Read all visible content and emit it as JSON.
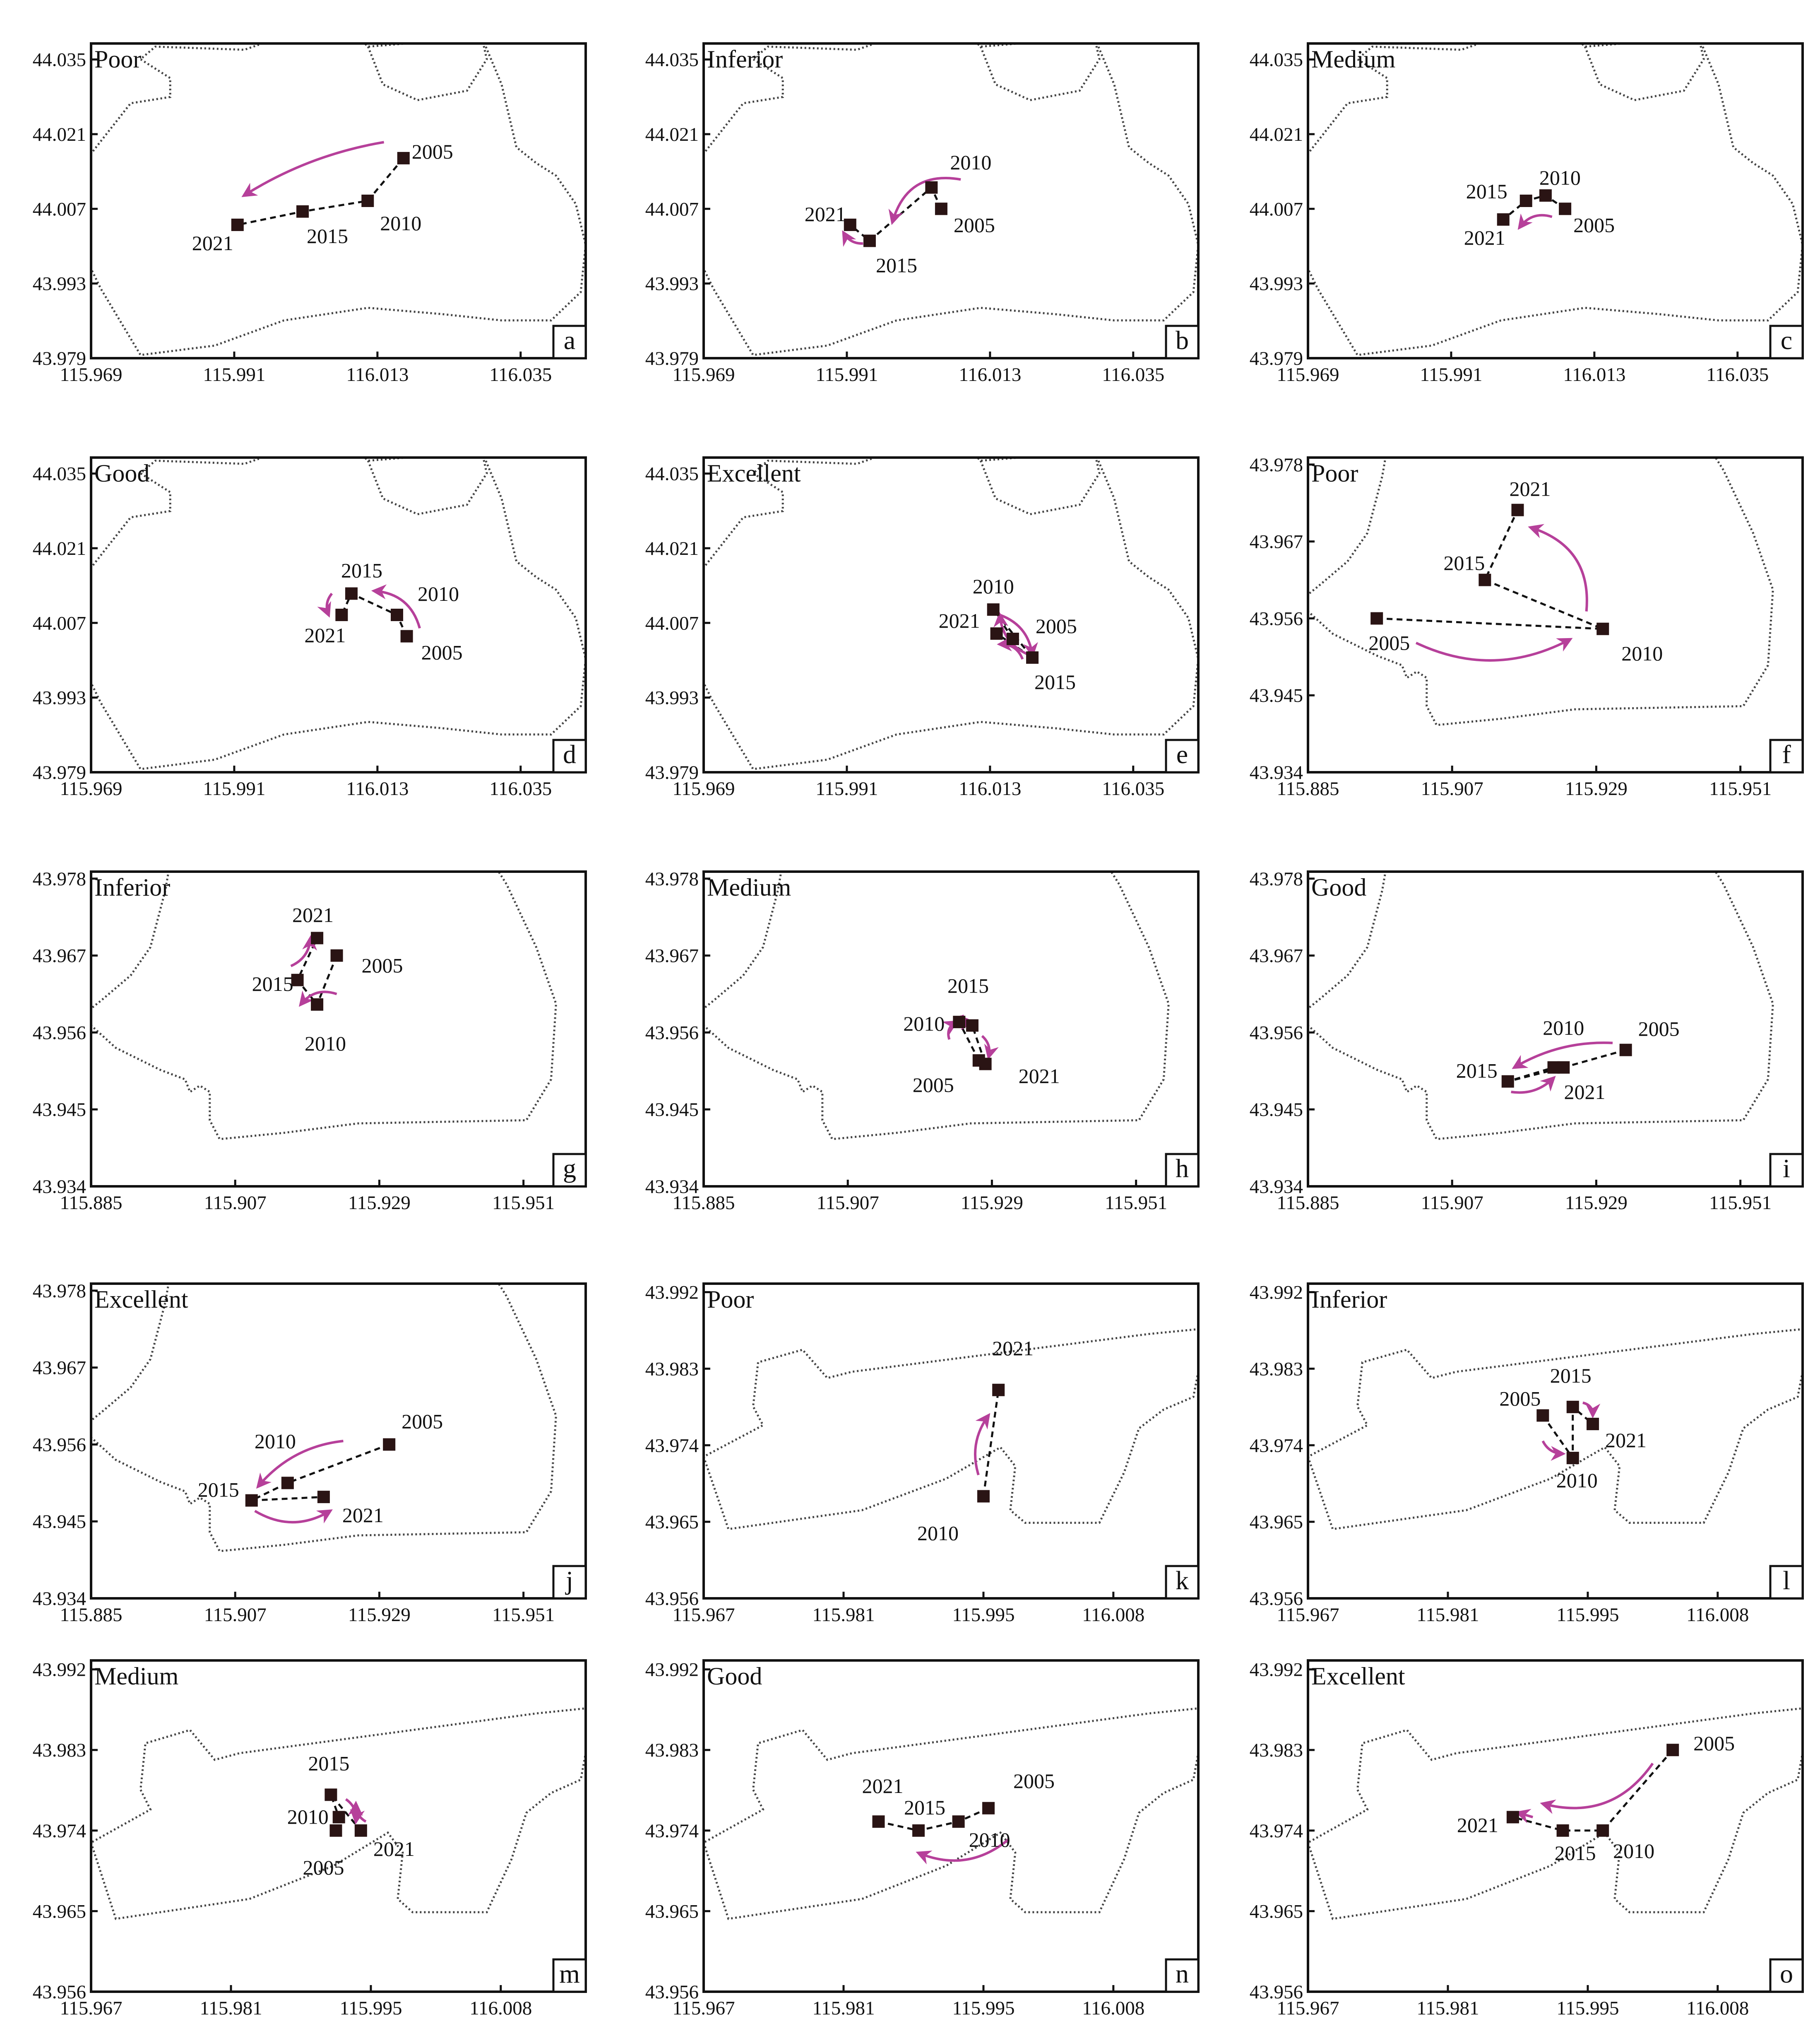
{
  "colors": {
    "arrow": "#b6409a",
    "marker": "#2a1414",
    "axis": "#111111"
  },
  "chart_data": [
    {
      "id": "a",
      "type": "scatter",
      "title": "Poor",
      "region": "R1",
      "xlim": [
        115.969,
        116.045
      ],
      "ylim": [
        43.979,
        44.038
      ],
      "xticks": [
        "115.969",
        "115.991",
        "116.013",
        "116.035"
      ],
      "yticks": [
        "44.035",
        "44.021",
        "44.007",
        "43.993",
        "43.979"
      ],
      "points": [
        {
          "year": "2005",
          "x": 116.017,
          "y": 44.0165
        },
        {
          "year": "2010",
          "x": 116.0115,
          "y": 44.0085
        },
        {
          "year": "2015",
          "x": 116.0015,
          "y": 44.0065
        },
        {
          "year": "2021",
          "x": 115.9915,
          "y": 44.004
        }
      ],
      "arrows": [
        {
          "from": [
            116.014,
            44.0195
          ],
          "to": [
            115.9925,
            44.0095
          ],
          "bend": 0.1
        }
      ]
    },
    {
      "id": "b",
      "type": "scatter",
      "title": "Inferior",
      "region": "R1",
      "xlim": [
        115.969,
        116.045
      ],
      "ylim": [
        43.979,
        44.038
      ],
      "xticks": [
        "115.969",
        "115.991",
        "116.013",
        "116.035"
      ],
      "yticks": [
        "44.035",
        "44.021",
        "44.007",
        "43.993",
        "43.979"
      ],
      "points": [
        {
          "year": "2005",
          "x": 116.0055,
          "y": 44.007
        },
        {
          "year": "2010",
          "x": 116.004,
          "y": 44.011
        },
        {
          "year": "2015",
          "x": 115.9945,
          "y": 44.001
        },
        {
          "year": "2021",
          "x": 115.9915,
          "y": 44.004
        }
      ],
      "arrows": [
        {
          "from": [
            116.0085,
            44.0125
          ],
          "to": [
            115.998,
            44.0045
          ],
          "bend": 0.45
        },
        {
          "from": [
            115.9935,
            44.0005
          ],
          "to": [
            115.9905,
            44.0025
          ],
          "bend": -0.3
        }
      ]
    },
    {
      "id": "c",
      "type": "scatter",
      "title": "Medium",
      "region": "R1",
      "xlim": [
        115.969,
        116.045
      ],
      "ylim": [
        43.979,
        44.038
      ],
      "xticks": [
        "115.969",
        "115.991",
        "116.013",
        "116.035"
      ],
      "yticks": [
        "44.035",
        "44.021",
        "44.007",
        "43.993",
        "43.979"
      ],
      "points": [
        {
          "year": "2005",
          "x": 116.0085,
          "y": 44.007
        },
        {
          "year": "2010",
          "x": 116.0055,
          "y": 44.0095
        },
        {
          "year": "2015",
          "x": 116.0025,
          "y": 44.0085
        },
        {
          "year": "2021",
          "x": 115.999,
          "y": 44.005
        }
      ],
      "arrows": [
        {
          "from": [
            116.0065,
            44.0055
          ],
          "to": [
            116.0015,
            44.0035
          ],
          "bend": 0.35
        }
      ]
    },
    {
      "id": "d",
      "type": "scatter",
      "title": "Good",
      "region": "R1",
      "xlim": [
        115.969,
        116.045
      ],
      "ylim": [
        43.979,
        44.038
      ],
      "xticks": [
        "115.969",
        "115.991",
        "116.013",
        "116.035"
      ],
      "yticks": [
        "44.035",
        "44.021",
        "44.007",
        "43.993",
        "43.979"
      ],
      "points": [
        {
          "year": "2005",
          "x": 116.0175,
          "y": 44.0045
        },
        {
          "year": "2010",
          "x": 116.016,
          "y": 44.0085
        },
        {
          "year": "2015",
          "x": 116.009,
          "y": 44.0125
        },
        {
          "year": "2021",
          "x": 116.0075,
          "y": 44.0085
        }
      ],
      "arrows": [
        {
          "from": [
            116.0195,
            44.006
          ],
          "to": [
            116.0125,
            44.013
          ],
          "bend": 0.35
        },
        {
          "from": [
            116.006,
            44.0125
          ],
          "to": [
            116.0055,
            44.0085
          ],
          "bend": 0.3
        }
      ]
    },
    {
      "id": "e",
      "type": "scatter",
      "title": "Excellent",
      "region": "R1",
      "xlim": [
        115.969,
        116.045
      ],
      "ylim": [
        43.979,
        44.038
      ],
      "xticks": [
        "115.969",
        "115.991",
        "116.013",
        "116.035"
      ],
      "yticks": [
        "44.035",
        "44.021",
        "44.007",
        "43.993",
        "43.979"
      ],
      "points": [
        {
          "year": "2005",
          "x": 116.0165,
          "y": 44.004
        },
        {
          "year": "2010",
          "x": 116.0135,
          "y": 44.0095
        },
        {
          "year": "2015",
          "x": 116.0195,
          "y": 44.0005
        },
        {
          "year": "2021",
          "x": 116.014,
          "y": 44.005
        }
      ],
      "arrows": [
        {
          "from": [
            116.0145,
            44.0085
          ],
          "to": [
            116.0195,
            44.001
          ],
          "bend": -0.3
        },
        {
          "from": [
            116.019,
            44.001
          ],
          "to": [
            116.0145,
            44.0085
          ],
          "bend": -0.3
        },
        {
          "from": [
            116.018,
            44.0002
          ],
          "to": [
            116.0145,
            44.003
          ],
          "bend": 0.35
        }
      ]
    },
    {
      "id": "f",
      "type": "scatter",
      "title": "Poor",
      "region": "R2",
      "xlim": [
        115.885,
        115.9605
      ],
      "ylim": [
        43.934,
        43.979
      ],
      "xticks": [
        "115.885",
        "115.907",
        "115.929",
        "115.951"
      ],
      "yticks": [
        "43.978",
        "43.967",
        "43.956",
        "43.945",
        "43.934"
      ],
      "points": [
        {
          "year": "2005",
          "x": 115.8955,
          "y": 43.956
        },
        {
          "year": "2010",
          "x": 115.93,
          "y": 43.9545
        },
        {
          "year": "2015",
          "x": 115.912,
          "y": 43.9615
        },
        {
          "year": "2021",
          "x": 115.917,
          "y": 43.9715
        }
      ],
      "arrows": [
        {
          "from": [
            115.9275,
            43.957
          ],
          "to": [
            115.919,
            43.969
          ],
          "bend": 0.4
        },
        {
          "from": [
            115.9015,
            43.9525
          ],
          "to": [
            115.925,
            43.953
          ],
          "bend": 0.25
        }
      ]
    },
    {
      "id": "g",
      "type": "scatter",
      "title": "Inferior",
      "region": "R2",
      "xlim": [
        115.885,
        115.9605
      ],
      "ylim": [
        43.934,
        43.979
      ],
      "xticks": [
        "115.885",
        "115.907",
        "115.929",
        "115.951"
      ],
      "yticks": [
        "43.978",
        "43.967",
        "43.956",
        "43.945",
        "43.934"
      ],
      "points": [
        {
          "year": "2005",
          "x": 115.9225,
          "y": 43.967
        },
        {
          "year": "2010",
          "x": 115.9195,
          "y": 43.96
        },
        {
          "year": "2015",
          "x": 115.9165,
          "y": 43.9635
        },
        {
          "year": "2021",
          "x": 115.9195,
          "y": 43.9695
        }
      ],
      "arrows": [
        {
          "from": [
            115.9155,
            43.9655
          ],
          "to": [
            115.9185,
            43.9695
          ],
          "bend": 0.3
        },
        {
          "from": [
            115.9225,
            43.9615
          ],
          "to": [
            115.917,
            43.96
          ],
          "bend": 0.35
        }
      ]
    },
    {
      "id": "h",
      "type": "scatter",
      "title": "Medium",
      "region": "R2",
      "xlim": [
        115.885,
        115.9605
      ],
      "ylim": [
        43.934,
        43.979
      ],
      "xticks": [
        "115.885",
        "115.907",
        "115.929",
        "115.951"
      ],
      "yticks": [
        "43.978",
        "43.967",
        "43.956",
        "43.945",
        "43.934"
      ],
      "points": [
        {
          "year": "2005",
          "x": 115.927,
          "y": 43.952
        },
        {
          "year": "2010",
          "x": 115.924,
          "y": 43.9575
        },
        {
          "year": "2015",
          "x": 115.926,
          "y": 43.957
        },
        {
          "year": "2021",
          "x": 115.928,
          "y": 43.9515
        }
      ],
      "arrows": [
        {
          "from": [
            115.9245,
            43.9585
          ],
          "to": [
            115.926,
            43.9575
          ],
          "bend": 0.4
        },
        {
          "from": [
            115.9225,
            43.955
          ],
          "to": [
            115.9235,
            43.9575
          ],
          "bend": -0.4
        },
        {
          "from": [
            115.9275,
            43.9555
          ],
          "to": [
            115.9285,
            43.9525
          ],
          "bend": -0.3
        }
      ]
    },
    {
      "id": "i",
      "type": "scatter",
      "title": "Good",
      "region": "R2",
      "xlim": [
        115.885,
        115.9605
      ],
      "ylim": [
        43.934,
        43.979
      ],
      "xticks": [
        "115.885",
        "115.907",
        "115.929",
        "115.951"
      ],
      "yticks": [
        "43.978",
        "43.967",
        "43.956",
        "43.945",
        "43.934"
      ],
      "points": [
        {
          "year": "2005",
          "x": 115.9335,
          "y": 43.9535
        },
        {
          "year": "2010",
          "x": 115.924,
          "y": 43.951
        },
        {
          "year": "2015",
          "x": 115.9155,
          "y": 43.949
        },
        {
          "year": "2021",
          "x": 115.9225,
          "y": 43.951
        }
      ],
      "arrows": [
        {
          "from": [
            115.9315,
            43.9545
          ],
          "to": [
            115.9165,
            43.951
          ],
          "bend": 0.15
        },
        {
          "from": [
            115.916,
            43.9475
          ],
          "to": [
            115.9225,
            43.9495
          ],
          "bend": 0.25
        }
      ]
    },
    {
      "id": "j",
      "type": "scatter",
      "title": "Excellent",
      "region": "R2",
      "xlim": [
        115.885,
        115.9605
      ],
      "ylim": [
        43.934,
        43.979
      ],
      "xticks": [
        "115.885",
        "115.907",
        "115.929",
        "115.951"
      ],
      "yticks": [
        "43.978",
        "43.967",
        "43.956",
        "43.945",
        "43.934"
      ],
      "points": [
        {
          "year": "2005",
          "x": 115.9305,
          "y": 43.956
        },
        {
          "year": "2010",
          "x": 115.915,
          "y": 43.9505
        },
        {
          "year": "2015",
          "x": 115.9095,
          "y": 43.948
        },
        {
          "year": "2021",
          "x": 115.9205,
          "y": 43.9485
        }
      ],
      "arrows": [
        {
          "from": [
            115.9235,
            43.9565
          ],
          "to": [
            115.9105,
            43.95
          ],
          "bend": 0.2
        },
        {
          "from": [
            115.91,
            43.9465
          ],
          "to": [
            115.9215,
            43.9465
          ],
          "bend": 0.3
        }
      ]
    },
    {
      "id": "k",
      "type": "scatter",
      "title": "Poor",
      "region": "R3",
      "xlim": [
        115.967,
        116.0165
      ],
      "ylim": [
        43.956,
        43.993
      ],
      "xticks": [
        "115.967",
        "115.981",
        "115.995",
        "116.008"
      ],
      "yticks": [
        "43.992",
        "43.983",
        "43.974",
        "43.965",
        "43.956"
      ],
      "points": [
        {
          "year": "2010",
          "x": 115.995,
          "y": 43.968
        },
        {
          "year": "2021",
          "x": 115.9965,
          "y": 43.9805
        }
      ],
      "arrows": [
        {
          "from": [
            115.9945,
            43.9705
          ],
          "to": [
            115.9955,
            43.9775
          ],
          "bend": -0.25
        }
      ]
    },
    {
      "id": "l",
      "type": "scatter",
      "title": "Inferior",
      "region": "R3",
      "xlim": [
        115.967,
        116.0165
      ],
      "ylim": [
        43.956,
        43.993
      ],
      "xticks": [
        "115.967",
        "115.981",
        "115.995",
        "116.008"
      ],
      "yticks": [
        "43.992",
        "43.983",
        "43.974",
        "43.965",
        "43.956"
      ],
      "points": [
        {
          "year": "2005",
          "x": 115.9905,
          "y": 43.9775
        },
        {
          "year": "2010",
          "x": 115.9935,
          "y": 43.9725
        },
        {
          "year": "2015",
          "x": 115.9935,
          "y": 43.9785
        },
        {
          "year": "2021",
          "x": 115.9955,
          "y": 43.9765
        }
      ],
      "arrows": [
        {
          "from": [
            115.9905,
            43.9745
          ],
          "to": [
            115.9925,
            43.973
          ],
          "bend": 0.3
        },
        {
          "from": [
            115.9945,
            43.979
          ],
          "to": [
            115.9955,
            43.9775
          ],
          "bend": -0.4
        }
      ]
    },
    {
      "id": "m",
      "type": "scatter",
      "title": "Medium",
      "region": "R3",
      "xlim": [
        115.967,
        116.0165
      ],
      "ylim": [
        43.956,
        43.993
      ],
      "xticks": [
        "115.967",
        "115.981",
        "115.995",
        "116.008"
      ],
      "yticks": [
        "43.992",
        "43.983",
        "43.974",
        "43.965",
        "43.956"
      ],
      "points": [
        {
          "year": "2005",
          "x": 115.9915,
          "y": 43.974
        },
        {
          "year": "2010",
          "x": 115.9918,
          "y": 43.9755
        },
        {
          "year": "2015",
          "x": 115.991,
          "y": 43.978
        },
        {
          "year": "2021",
          "x": 115.994,
          "y": 43.974
        }
      ],
      "arrows": [
        {
          "from": [
            115.9925,
            43.9775
          ],
          "to": [
            115.9935,
            43.975
          ],
          "bend": -0.3
        },
        {
          "from": [
            115.9945,
            43.975
          ],
          "to": [
            115.9935,
            43.977
          ],
          "bend": -0.3
        }
      ]
    },
    {
      "id": "n",
      "type": "scatter",
      "title": "Good",
      "region": "R3",
      "xlim": [
        115.967,
        116.0165
      ],
      "ylim": [
        43.956,
        43.993
      ],
      "xticks": [
        "115.967",
        "115.981",
        "115.995",
        "116.008"
      ],
      "yticks": [
        "43.992",
        "43.983",
        "43.974",
        "43.965",
        "43.956"
      ],
      "points": [
        {
          "year": "2005",
          "x": 115.9955,
          "y": 43.9765
        },
        {
          "year": "2010",
          "x": 115.9925,
          "y": 43.975
        },
        {
          "year": "2015",
          "x": 115.9885,
          "y": 43.974
        },
        {
          "year": "2021",
          "x": 115.9845,
          "y": 43.975
        }
      ],
      "arrows": [
        {
          "from": [
            115.9975,
            43.973
          ],
          "to": [
            115.9885,
            43.9715
          ],
          "bend": -0.3
        }
      ]
    },
    {
      "id": "o",
      "type": "scatter",
      "title": "Excellent",
      "region": "R3",
      "xlim": [
        115.967,
        116.0165
      ],
      "ylim": [
        43.956,
        43.993
      ],
      "xticks": [
        "115.967",
        "115.981",
        "115.995",
        "116.008"
      ],
      "yticks": [
        "43.992",
        "43.983",
        "43.974",
        "43.965",
        "43.956"
      ],
      "points": [
        {
          "year": "2005",
          "x": 116.0035,
          "y": 43.983
        },
        {
          "year": "2010",
          "x": 115.9965,
          "y": 43.974
        },
        {
          "year": "2015",
          "x": 115.9925,
          "y": 43.974
        },
        {
          "year": "2021",
          "x": 115.9875,
          "y": 43.9755
        }
      ],
      "arrows": [
        {
          "from": [
            116.0015,
            43.9815
          ],
          "to": [
            115.9905,
            43.977
          ],
          "bend": -0.35
        },
        {
          "from": [
            115.9895,
            43.9755
          ],
          "to": [
            115.988,
            43.976
          ],
          "bend": 0
        }
      ]
    }
  ]
}
